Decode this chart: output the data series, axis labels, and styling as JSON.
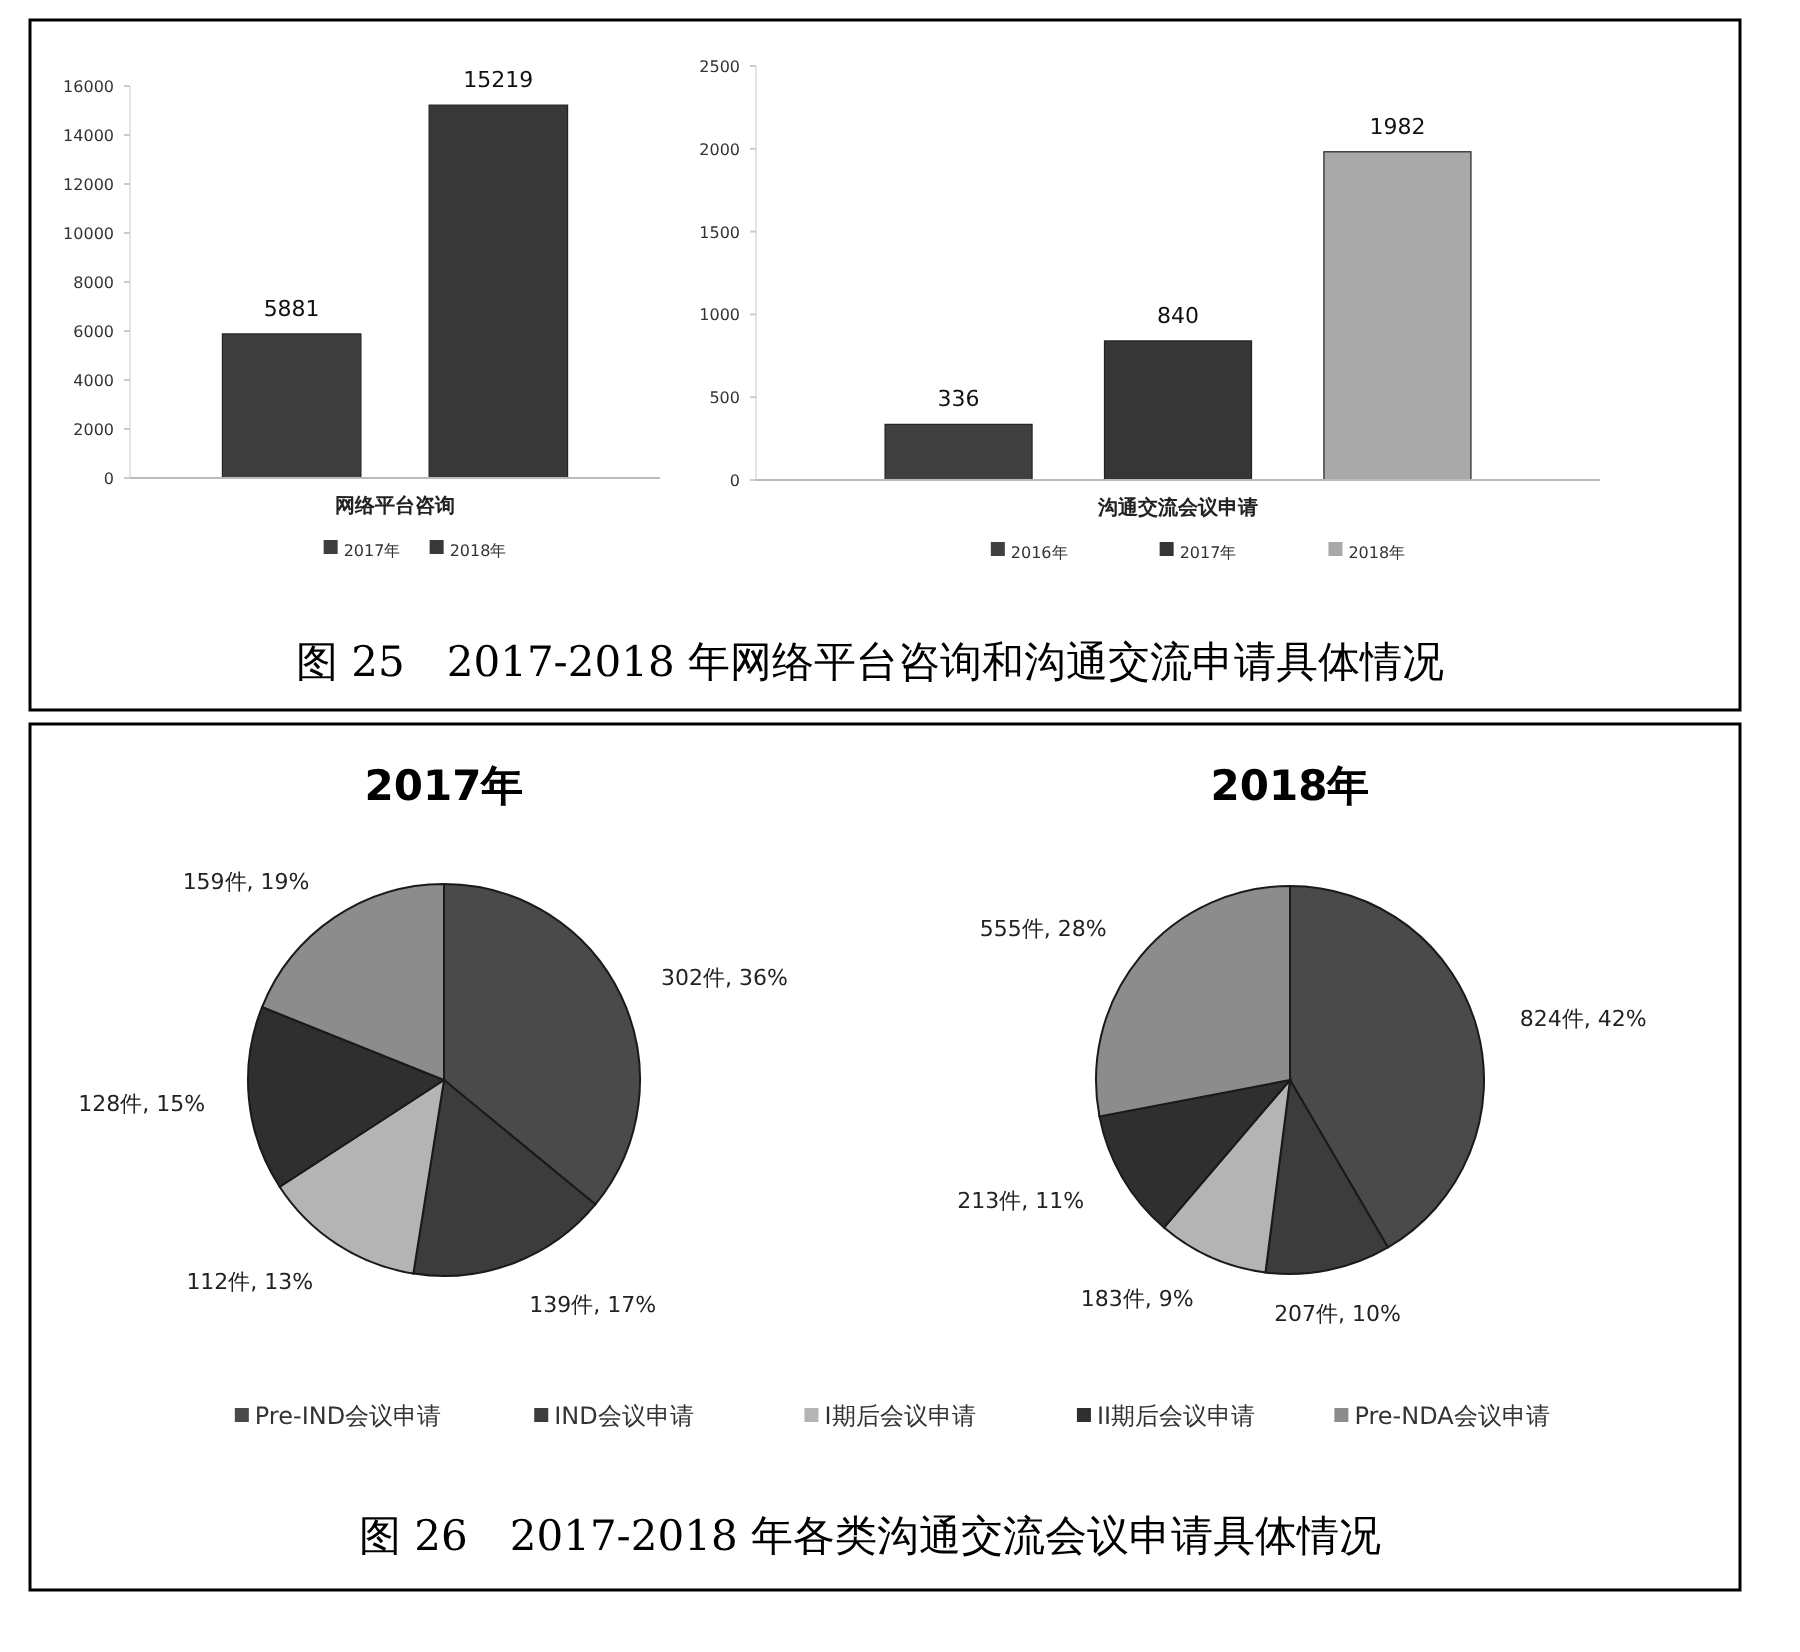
{
  "chart_data": [
    {
      "type": "bar",
      "categories": [
        "网络平台咨询"
      ],
      "series": [
        {
          "name": "2017年",
          "color": "#3e3e3e",
          "values": [
            5881
          ]
        },
        {
          "name": "2018年",
          "color": "#383838",
          "values": [
            15219
          ]
        }
      ],
      "ylim": [
        0,
        16000
      ],
      "yticks": [
        0,
        2000,
        4000,
        6000,
        8000,
        10000,
        12000,
        14000,
        16000
      ],
      "data_labels": true,
      "legend": "bottom",
      "grid": false,
      "annotations": [
        "图 25　2017-2018 年网络平台咨询和沟通交流申请具体情况"
      ]
    },
    {
      "type": "bar",
      "categories": [
        "沟通交流会议申请"
      ],
      "series": [
        {
          "name": "2016年",
          "color": "#404040",
          "values": [
            336
          ]
        },
        {
          "name": "2017年",
          "color": "#363636",
          "values": [
            840
          ]
        },
        {
          "name": "2018年",
          "color": "#a9a9a9",
          "values": [
            1982
          ]
        }
      ],
      "ylim": [
        0,
        2500
      ],
      "yticks": [
        0,
        500,
        1000,
        1500,
        2000,
        2500
      ],
      "data_labels": true,
      "legend": "bottom",
      "grid": false
    },
    {
      "type": "pie",
      "title": "2017年",
      "categories": [
        "Pre-IND会议申请",
        "IND会议申请",
        "I期后会议申请",
        "II期后会议申请",
        "Pre-NDA会议申请"
      ],
      "values": [
        302,
        139,
        112,
        128,
        159
      ],
      "colors": [
        "#4a4a4a",
        "#3c3c3c",
        "#b4b4b4",
        "#2f2f2f",
        "#8c8c8c"
      ],
      "value_labels": [
        "302件, 36%",
        "139件, 17%",
        "112件, 13%",
        "128件, 15%",
        "159件, 19%"
      ],
      "legend": "bottom"
    },
    {
      "type": "pie",
      "title": "2018年",
      "categories": [
        null,
        null,
        null,
        null,
        null
      ],
      "values": [
        824,
        207,
        183,
        213,
        555
      ],
      "colors": [
        "#4a4a4a",
        "#3c3c3c",
        "#b4b4b4",
        "#2f2f2f",
        "#8c8c8c"
      ],
      "value_labels": [
        "824件, 42%",
        "207件, 10%",
        "183件, 9%",
        "213件, 11%",
        "555件, 28%"
      ],
      "annotations": [
        "图 26　2017-2018 年各类沟通交流会议申请具体情况"
      ]
    }
  ]
}
